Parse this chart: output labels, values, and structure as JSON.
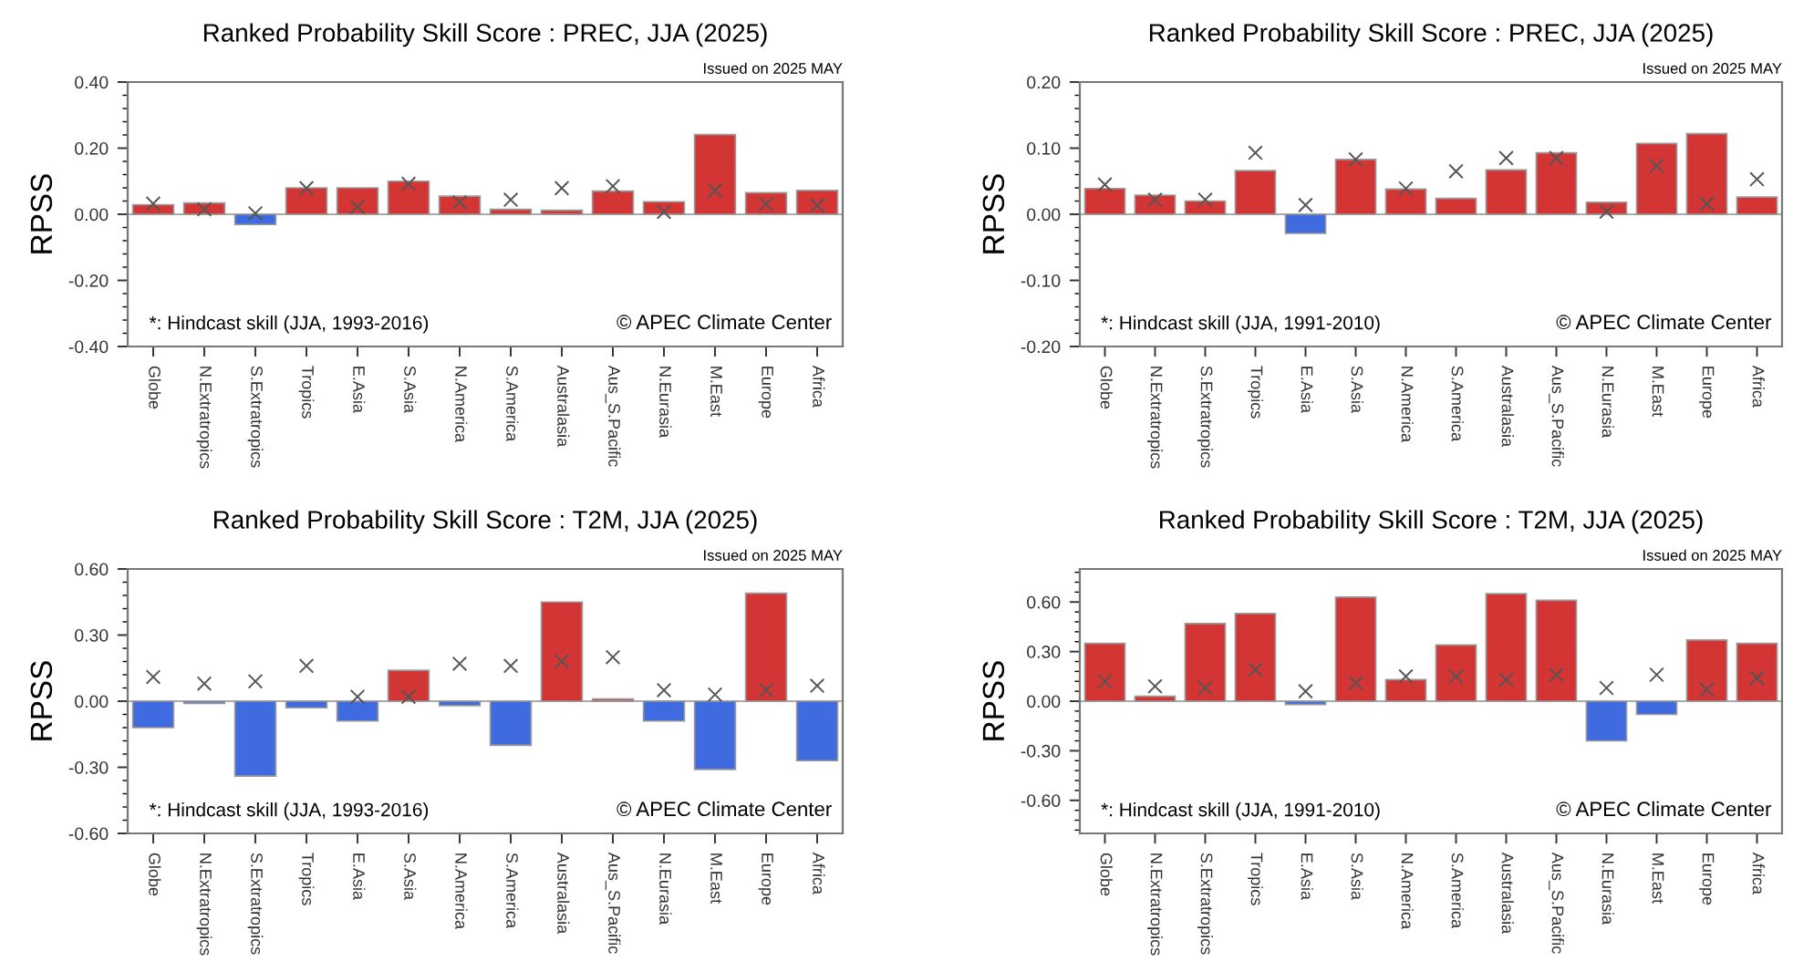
{
  "chart_data": [
    {
      "type": "bar",
      "title": "Ranked Probability Skill Score : PREC, JJA (2025)",
      "ylabel": "RPSS",
      "categories": [
        "Globe",
        "N.Extratropics",
        "S.Extratropics",
        "Tropics",
        "E.Asia",
        "S.Asia",
        "N.America",
        "S.America",
        "Australasia",
        "Aus_S.Pacific",
        "N.Eurasia",
        "M.East",
        "Europe",
        "Africa"
      ],
      "ylim": [
        -0.4,
        0.4
      ],
      "yticks": [
        {
          "value": -0.4,
          "label": "-0.40"
        },
        {
          "value": -0.2,
          "label": "-0.20"
        },
        {
          "value": 0,
          "label": "0.00"
        },
        {
          "value": 0.2,
          "label": "0.20"
        },
        {
          "value": 0.4,
          "label": "0.40"
        }
      ],
      "annotations": [
        "Issued on 2025 MAY",
        "*: Hindcast skill (JJA, 1993-2016)",
        "© APEC Climate Center"
      ],
      "series": [
        {
          "colors": [
            "#d33535",
            "#d33535",
            "#3f6ae0",
            "#d33535",
            "#d33535",
            "#d33535",
            "#d33535",
            "#d33535",
            "#d33535",
            "#d33535",
            "#d33535",
            "#d33535",
            "#d33535",
            "#d33535"
          ],
          "values": [
            0.029,
            0.034,
            -0.031,
            0.08,
            0.08,
            0.1,
            0.055,
            0.015,
            0.012,
            0.07,
            0.038,
            0.241,
            0.065,
            0.072
          ]
        },
        {
          "type": "scatter",
          "marker": "cross",
          "color": "#555555",
          "values": [
            0.032,
            0.015,
            0.003,
            0.079,
            0.022,
            0.092,
            0.036,
            0.044,
            0.079,
            0.085,
            0.007,
            0.072,
            0.031,
            0.026
          ]
        }
      ]
    },
    {
      "type": "bar",
      "title": "Ranked Probability Skill Score : PREC, JJA (2025)",
      "ylabel": "RPSS",
      "categories": [
        "Globe",
        "N.Extratropics",
        "S.Extratropics",
        "Tropics",
        "E.Asia",
        "S.Asia",
        "N.America",
        "S.America",
        "Australasia",
        "Aus_S.Pacific",
        "N.Eurasia",
        "M.East",
        "Europe",
        "Africa"
      ],
      "ylim": [
        -0.2,
        0.2
      ],
      "yticks": [
        {
          "value": -0.2,
          "label": "-0.20"
        },
        {
          "value": -0.1,
          "label": "-0.10"
        },
        {
          "value": 0,
          "label": "0.00"
        },
        {
          "value": 0.1,
          "label": "0.10"
        },
        {
          "value": 0.2,
          "label": "0.20"
        }
      ],
      "annotations": [
        "Issued on 2025 MAY",
        "*: Hindcast skill (JJA, 1991-2010)",
        "© APEC Climate Center"
      ],
      "series": [
        {
          "colors": [
            "#d33535",
            "#d33535",
            "#d33535",
            "#d33535",
            "#3f6ae0",
            "#d33535",
            "#d33535",
            "#d33535",
            "#d33535",
            "#d33535",
            "#d33535",
            "#d33535",
            "#d33535",
            "#d33535"
          ],
          "values": [
            0.039,
            0.029,
            0.02,
            0.066,
            -0.029,
            0.083,
            0.038,
            0.024,
            0.067,
            0.093,
            0.018,
            0.107,
            0.122,
            0.026
          ]
        },
        {
          "type": "scatter",
          "marker": "cross",
          "color": "#555555",
          "values": [
            0.045,
            0.022,
            0.022,
            0.093,
            0.014,
            0.083,
            0.039,
            0.065,
            0.085,
            0.085,
            0.004,
            0.073,
            0.016,
            0.053
          ]
        }
      ]
    },
    {
      "type": "bar",
      "title": "Ranked Probability Skill Score : T2M, JJA (2025)",
      "ylabel": "RPSS",
      "categories": [
        "Globe",
        "N.Extratropics",
        "S.Extratropics",
        "Tropics",
        "E.Asia",
        "S.Asia",
        "N.America",
        "S.America",
        "Australasia",
        "Aus_S.Pacific",
        "N.Eurasia",
        "M.East",
        "Europe",
        "Africa"
      ],
      "ylim": [
        -0.6,
        0.6
      ],
      "yticks": [
        {
          "value": -0.6,
          "label": "-0.60"
        },
        {
          "value": -0.3,
          "label": "-0.30"
        },
        {
          "value": 0,
          "label": "0.00"
        },
        {
          "value": 0.3,
          "label": "0.30"
        },
        {
          "value": 0.6,
          "label": "0.60"
        }
      ],
      "annotations": [
        "Issued on 2025 MAY",
        "*: Hindcast skill (JJA, 1993-2016)",
        "© APEC Climate Center"
      ],
      "series": [
        {
          "colors": [
            "#3f6ae0",
            "#3f6ae0",
            "#3f6ae0",
            "#3f6ae0",
            "#3f6ae0",
            "#d33535",
            "#3f6ae0",
            "#3f6ae0",
            "#d33535",
            "#d33535",
            "#3f6ae0",
            "#3f6ae0",
            "#d33535",
            "#3f6ae0"
          ],
          "values": [
            -0.12,
            -0.01,
            -0.34,
            -0.03,
            -0.09,
            0.14,
            -0.02,
            -0.2,
            0.45,
            0.01,
            -0.09,
            -0.31,
            0.49,
            -0.27
          ]
        },
        {
          "type": "scatter",
          "marker": "cross",
          "color": "#555555",
          "values": [
            0.11,
            0.08,
            0.09,
            0.16,
            0.02,
            0.02,
            0.17,
            0.16,
            0.18,
            0.2,
            0.05,
            0.03,
            0.05,
            0.07
          ]
        }
      ]
    },
    {
      "type": "bar",
      "title": "Ranked Probability Skill Score : T2M, JJA (2025)",
      "ylabel": "RPSS",
      "categories": [
        "Globe",
        "N.Extratropics",
        "S.Extratropics",
        "Tropics",
        "E.Asia",
        "S.Asia",
        "N.America",
        "S.America",
        "Australasia",
        "Aus_S.Pacific",
        "N.Eurasia",
        "M.East",
        "Europe",
        "Africa"
      ],
      "ylim": [
        -0.8,
        0.8
      ],
      "yticks": [
        {
          "value": -0.6,
          "label": "-0.60"
        },
        {
          "value": -0.3,
          "label": "-0.30"
        },
        {
          "value": 0,
          "label": "0.00"
        },
        {
          "value": 0.3,
          "label": "0.30"
        },
        {
          "value": 0.6,
          "label": "0.60"
        }
      ],
      "annotations": [
        "Issued on 2025 MAY",
        "*: Hindcast skill (JJA, 1991-2010)",
        "© APEC Climate Center"
      ],
      "series": [
        {
          "colors": [
            "#d33535",
            "#d33535",
            "#d33535",
            "#d33535",
            "#3f6ae0",
            "#d33535",
            "#d33535",
            "#d33535",
            "#d33535",
            "#d33535",
            "#3f6ae0",
            "#3f6ae0",
            "#d33535",
            "#d33535"
          ],
          "values": [
            0.35,
            0.03,
            0.47,
            0.53,
            -0.02,
            0.63,
            0.13,
            0.34,
            0.65,
            0.61,
            -0.24,
            -0.08,
            0.37,
            0.35
          ]
        },
        {
          "type": "scatter",
          "marker": "cross",
          "color": "#555555",
          "values": [
            0.12,
            0.09,
            0.08,
            0.19,
            0.06,
            0.11,
            0.15,
            0.15,
            0.13,
            0.16,
            0.08,
            0.16,
            0.07,
            0.14
          ]
        }
      ]
    }
  ]
}
